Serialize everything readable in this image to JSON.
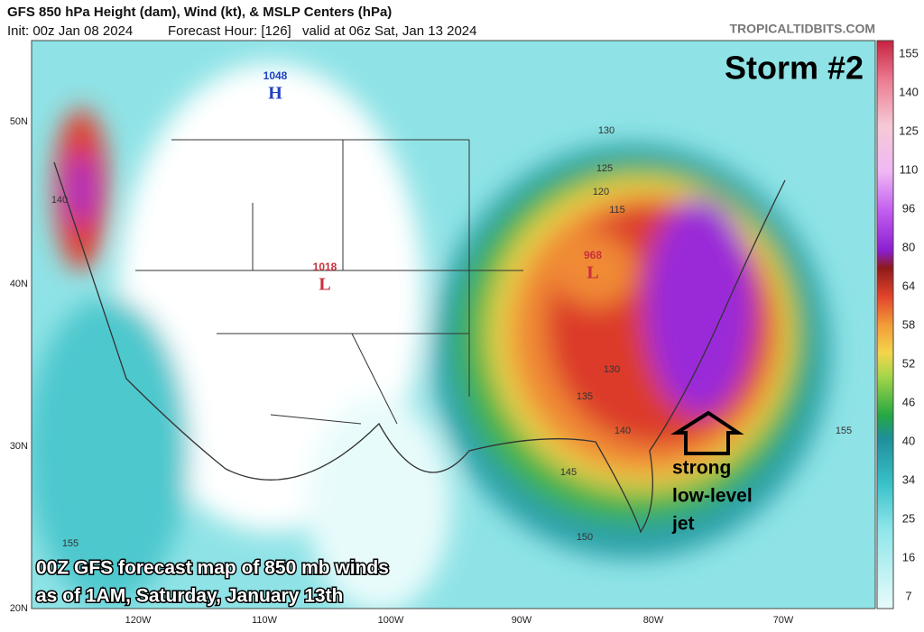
{
  "header": {
    "title": "GFS 850 hPa Height (dam), Wind (kt), & MSLP Centers (hPa)",
    "init": "Init: 00z Jan 08 2024",
    "forecast_hour": "Forecast Hour: [126]",
    "valid": "valid at 06z Sat, Jan 13 2024",
    "source": "TROPICALTIDBITS.COM"
  },
  "annotations": {
    "storm": "Storm #2",
    "jet": [
      "strong",
      "low-level",
      "jet"
    ],
    "caption": [
      "00Z GFS forecast map of 850 mb winds",
      "as of 1AM, Saturday, January 13th"
    ]
  },
  "pressure_centers": [
    {
      "value": "1048",
      "label": "H"
    },
    {
      "value": "1018",
      "label": "L"
    },
    {
      "value": "968",
      "label": "L"
    }
  ],
  "latitude_labels": [
    "50N",
    "40N",
    "30N",
    "20N"
  ],
  "longitude_labels": [
    "120W",
    "110W",
    "100W",
    "90W",
    "80W",
    "70W"
  ],
  "colorbar_labels": [
    "155",
    "140",
    "125",
    "110",
    "96",
    "80",
    "64",
    "58",
    "52",
    "46",
    "40",
    "34",
    "25",
    "16",
    "7"
  ],
  "contour_labels": [
    "130",
    "125",
    "120",
    "115",
    "135",
    "140",
    "145",
    "150",
    "155",
    "155",
    "140",
    "130"
  ]
}
